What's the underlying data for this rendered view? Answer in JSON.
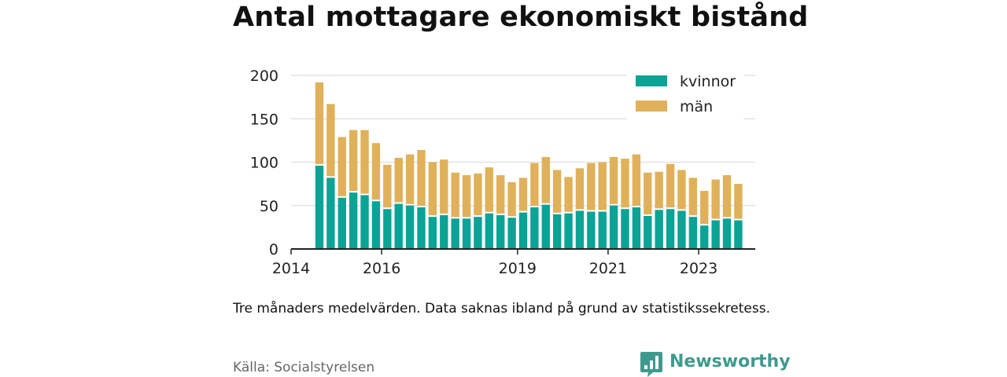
{
  "title": "Antal mottagare ekonomiskt bistånd",
  "subtitle": "Tre månaders medelvärden. Data saknas ibland på grund av statistikssekretess.",
  "source": "Källa: Socialstyrelsen",
  "brand": {
    "name": "Newsworthy",
    "icon": "newsworthy-logo-icon",
    "color": "#3f9a8e"
  },
  "chart_data": {
    "type": "bar",
    "stacked": true,
    "categories": [
      "2014-Q3",
      "2014-Q4",
      "2015-Q1",
      "2015-Q2",
      "2015-Q3",
      "2015-Q4",
      "2016-Q1",
      "2016-Q2",
      "2016-Q3",
      "2016-Q4",
      "2017-Q1",
      "2017-Q2",
      "2017-Q3",
      "2017-Q4",
      "2018-Q1",
      "2018-Q2",
      "2018-Q3",
      "2018-Q4",
      "2019-Q1",
      "2019-Q2",
      "2019-Q3",
      "2019-Q4",
      "2020-Q1",
      "2020-Q2",
      "2020-Q3",
      "2020-Q4",
      "2021-Q1",
      "2021-Q2",
      "2021-Q3",
      "2021-Q4",
      "2022-Q1",
      "2022-Q2",
      "2022-Q3",
      "2022-Q4",
      "2023-Q1",
      "2023-Q2",
      "2023-Q3",
      "2023-Q4"
    ],
    "series": [
      {
        "name": "kvinnor",
        "color": "#0aa396",
        "values": [
          96,
          82,
          59,
          65,
          62,
          55,
          46,
          52,
          50,
          48,
          37,
          39,
          35,
          35,
          37,
          41,
          39,
          36,
          42,
          48,
          51,
          40,
          41,
          44,
          43,
          43,
          50,
          46,
          48,
          38,
          45,
          46,
          44,
          37,
          27,
          33,
          35,
          33
        ]
      },
      {
        "name": "män",
        "color": "#e0b15a",
        "values": [
          96,
          85,
          70,
          72,
          75,
          67,
          51,
          53,
          59,
          66,
          63,
          64,
          53,
          50,
          50,
          53,
          46,
          41,
          40,
          51,
          55,
          51,
          42,
          49,
          56,
          57,
          56,
          58,
          61,
          50,
          44,
          52,
          47,
          45,
          40,
          47,
          50,
          42
        ]
      }
    ],
    "x_ticks": [
      "2014",
      "2016",
      "2019",
      "2021",
      "2023"
    ],
    "y_ticks": [
      0,
      50,
      100,
      150,
      200
    ],
    "ylim": [
      0,
      200
    ],
    "xlabel": "",
    "ylabel": "",
    "grid": true,
    "legend": "top-right"
  }
}
